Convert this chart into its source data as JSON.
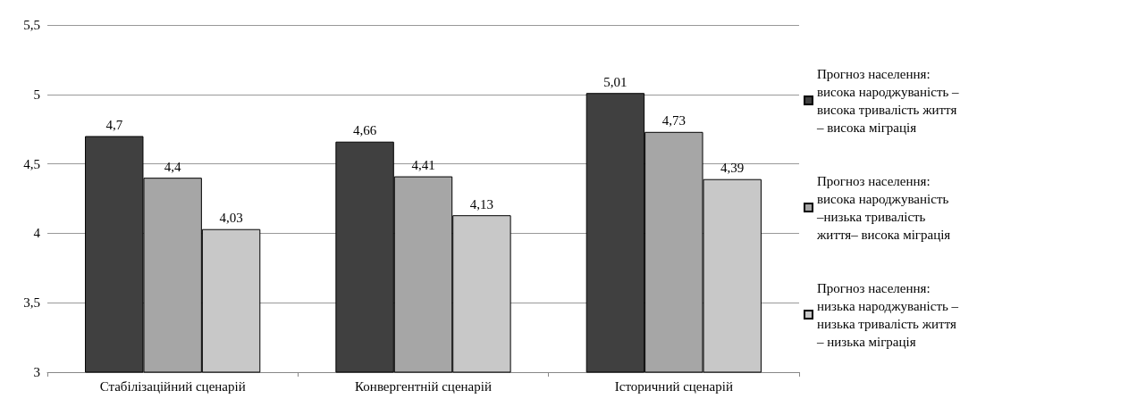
{
  "chart_data": {
    "type": "bar",
    "categories": [
      "Стабілізаційний сценарій",
      "Конвергентній сценарій",
      "Історичний сценарій"
    ],
    "series": [
      {
        "name": "Прогноз населення: висока народжуваність – висока тривалість життя – висока міграція",
        "color": "#404040",
        "values": [
          4.7,
          4.66,
          5.01
        ],
        "value_labels": [
          "4,7",
          "4,66",
          "5,01"
        ]
      },
      {
        "name": "Прогноз населення: висока народжуваність –низька тривалість життя– висока міграція",
        "color": "#a6a6a6",
        "values": [
          4.4,
          4.41,
          4.73
        ],
        "value_labels": [
          "4,4",
          "4,41",
          "4,73"
        ]
      },
      {
        "name": "Прогноз населення: низька народжуваність – низька тривалість життя – низька міграція",
        "color": "#c8c8c8",
        "values": [
          4.03,
          4.13,
          4.39
        ],
        "value_labels": [
          "4,03",
          "4,13",
          "4,39"
        ]
      }
    ],
    "ylim": [
      3,
      5.5
    ],
    "yticks": [
      3,
      {
        "value": 3.5,
        "label": "3,5"
      },
      4,
      {
        "value": 4.5,
        "label": "4,5"
      },
      5,
      {
        "value": 5.5,
        "label": "5,5"
      }
    ],
    "grid": "y",
    "legend": "right"
  }
}
